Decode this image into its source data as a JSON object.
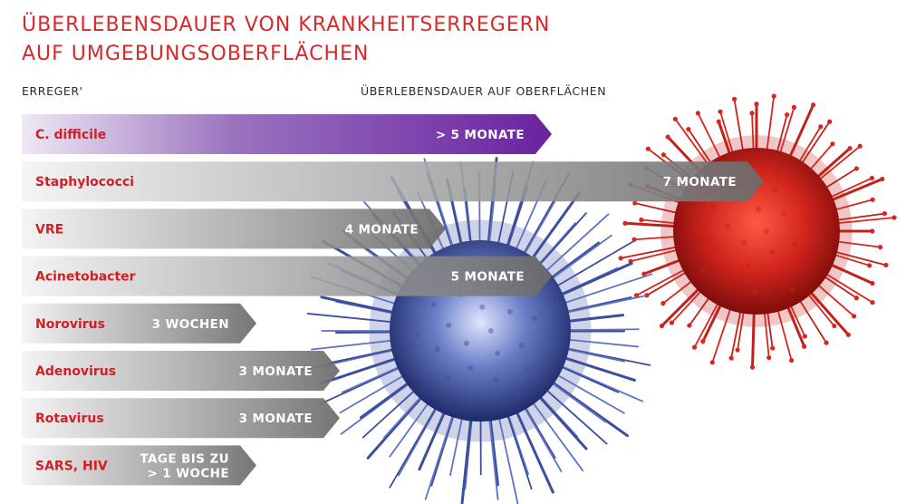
{
  "title": {
    "line1": "ÜBERLEBENSDAUER VON KRANKHEITSERREGERN",
    "line2": "AUF UMGEBUNGSOBERFLÄCHEN"
  },
  "column_labels": {
    "left": "ERREGER'",
    "right": "ÜBERLEBENSDAUER AUF OBERFLÄCHEN"
  },
  "colors": {
    "title": "#d42a2a",
    "category": "#cf2027",
    "bar_gray": "#6b6b6b",
    "bar_highlight": "#6a22a0",
    "virus_red": "#c0211c",
    "virus_blue": "#3b4f9e"
  },
  "chart_data": {
    "type": "bar",
    "orientation": "horizontal",
    "title": "ÜBERLEBENSDAUER VON KRANKHEITSERREGERN AUF UMGEBUNGSOBERFLÄCHEN",
    "xlabel": "ÜBERLEBENSDAUER AUF OBERFLÄCHEN",
    "ylabel": "ERREGER'",
    "categories": [
      "C. difficile",
      "Staphylococci",
      "VRE",
      "Acinetobacter",
      "Norovirus",
      "Adenovirus",
      "Rotavirus",
      "SARS, HIV"
    ],
    "value_labels": [
      [
        "> 5 MONATE"
      ],
      [
        "7 MONATE"
      ],
      [
        "4 MONATE"
      ],
      [
        "5 MONATE"
      ],
      [
        "3 WOCHEN"
      ],
      [
        "3 MONATE"
      ],
      [
        "3 MONATE"
      ],
      [
        "TAGE BIS ZU",
        "> 1 WOCHE"
      ]
    ],
    "values_months": [
      5,
      7,
      4,
      5,
      0.75,
      3,
      3,
      0.25
    ],
    "highlight_index": 0
  }
}
